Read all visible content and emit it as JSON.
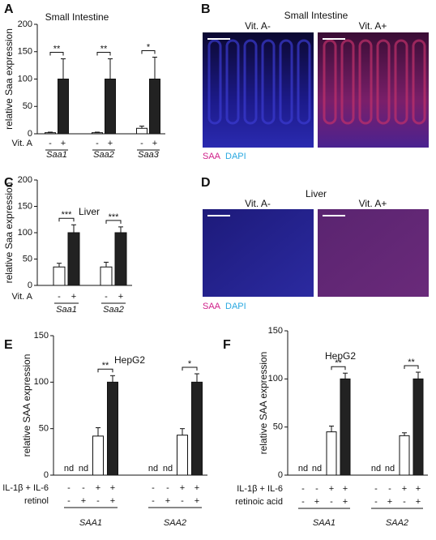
{
  "chart_data": [
    {
      "type": "bar",
      "panel": "A",
      "title": "Small Intestine",
      "y_label": "relative Saa expression",
      "categories": [
        "Saa1",
        "Saa2",
        "Saa3"
      ],
      "row_labels": [
        "Vit. A"
      ],
      "condition_signs": [
        [
          "-",
          "+"
        ]
      ],
      "series": [
        {
          "color": "#ffffff",
          "values": [
            2,
            2,
            10
          ],
          "errors": [
            1,
            1,
            4
          ]
        },
        {
          "color": "#222222",
          "values": [
            100,
            100,
            100
          ],
          "errors": [
            37,
            37,
            40
          ]
        }
      ],
      "significance": [
        "**",
        "**",
        "*"
      ],
      "ylim": [
        0,
        200
      ],
      "yticks": [
        0,
        50,
        100,
        150,
        200
      ]
    },
    {
      "type": "bar",
      "panel": "C",
      "title": "Liver",
      "y_label": "relative Saa expression",
      "categories": [
        "Saa1",
        "Saa2"
      ],
      "row_labels": [
        "Vit. A"
      ],
      "condition_signs": [
        [
          "-",
          "+"
        ]
      ],
      "series": [
        {
          "color": "#ffffff",
          "values": [
            35,
            35
          ],
          "errors": [
            7,
            9
          ]
        },
        {
          "color": "#222222",
          "values": [
            100,
            100
          ],
          "errors": [
            15,
            11
          ]
        }
      ],
      "significance": [
        "***",
        "***"
      ],
      "ylim": [
        0,
        200
      ],
      "yticks": [
        0,
        50,
        100,
        150,
        200
      ]
    },
    {
      "type": "bar",
      "panel": "E",
      "title": "HepG2",
      "y_label": "relative SAA expression",
      "categories": [
        "SAA1",
        "SAA2"
      ],
      "row_labels": [
        "IL-1β + IL-6",
        "retinol"
      ],
      "condition_signs": [
        [
          "-",
          "-",
          "+",
          "+"
        ],
        [
          "-",
          "+",
          "-",
          "+"
        ]
      ],
      "series": [
        {
          "color": "#ffffff",
          "values": [
            null,
            null
          ],
          "value_labels": [
            "nd",
            "nd"
          ]
        },
        {
          "color": "#ffffff",
          "values": [
            null,
            null
          ],
          "value_labels": [
            "nd",
            "nd"
          ]
        },
        {
          "color": "#ffffff",
          "values": [
            42,
            43
          ],
          "errors": [
            9,
            7
          ]
        },
        {
          "color": "#222222",
          "values": [
            100,
            100
          ],
          "errors": [
            7,
            9
          ]
        }
      ],
      "significance": [
        "**",
        "*"
      ],
      "ylim": [
        0,
        150
      ],
      "yticks": [
        0,
        50,
        100,
        150
      ]
    },
    {
      "type": "bar",
      "panel": "F",
      "title": "HepG2",
      "y_label": "relative SAA expression",
      "categories": [
        "SAA1",
        "SAA2"
      ],
      "row_labels": [
        "IL-1β + IL-6",
        "retinoic acid"
      ],
      "condition_signs": [
        [
          "-",
          "-",
          "+",
          "+"
        ],
        [
          "-",
          "+",
          "-",
          "+"
        ]
      ],
      "series": [
        {
          "color": "#ffffff",
          "values": [
            null,
            null
          ],
          "value_labels": [
            "nd",
            "nd"
          ]
        },
        {
          "color": "#ffffff",
          "values": [
            null,
            null
          ],
          "value_labels": [
            "nd",
            "nd"
          ]
        },
        {
          "color": "#ffffff",
          "values": [
            45,
            41
          ],
          "errors": [
            6,
            3
          ]
        },
        {
          "color": "#222222",
          "values": [
            100,
            100
          ],
          "errors": [
            6,
            7
          ]
        }
      ],
      "significance": [
        "**",
        "**"
      ],
      "ylim": [
        0,
        150
      ],
      "yticks": [
        0,
        50,
        100,
        150
      ]
    }
  ],
  "images": [
    {
      "panel": "B",
      "title": "Small Intestine",
      "subpanels": [
        "Vit. A-",
        "Vit. A+"
      ],
      "legend": [
        "SAA",
        "DAPI"
      ]
    },
    {
      "panel": "D",
      "title": "Liver",
      "subpanels": [
        "Vit. A-",
        "Vit. A+"
      ],
      "legend": [
        "SAA",
        "DAPI"
      ]
    }
  ]
}
